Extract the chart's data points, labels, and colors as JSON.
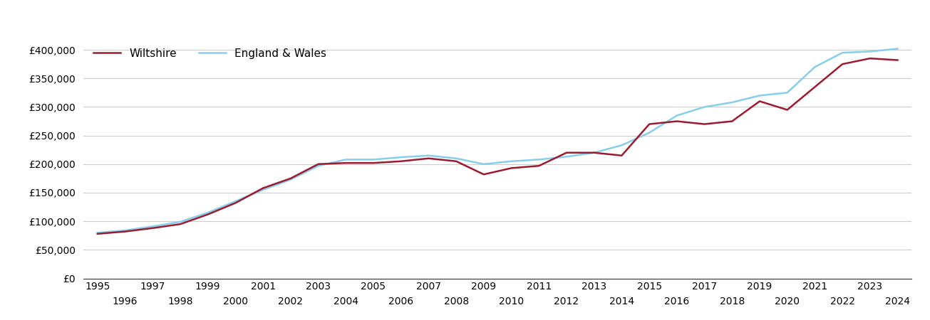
{
  "wiltshire_years": [
    1995,
    1996,
    1997,
    1998,
    1999,
    2000,
    2001,
    2002,
    2003,
    2004,
    2005,
    2006,
    2007,
    2008,
    2009,
    2010,
    2011,
    2012,
    2013,
    2014,
    2015,
    2016,
    2017,
    2018,
    2019,
    2020,
    2021,
    2022,
    2023,
    2024
  ],
  "wiltshire_values": [
    78000,
    82000,
    88000,
    95000,
    112000,
    132000,
    158000,
    175000,
    200000,
    202000,
    202000,
    205000,
    210000,
    205000,
    182000,
    193000,
    197000,
    220000,
    220000,
    215000,
    270000,
    275000,
    270000,
    275000,
    310000,
    295000,
    335000,
    375000,
    385000,
    382000
  ],
  "england_wales_years": [
    1995,
    1996,
    1997,
    1998,
    1999,
    2000,
    2001,
    2002,
    2003,
    2004,
    2005,
    2006,
    2007,
    2008,
    2009,
    2010,
    2011,
    2012,
    2013,
    2014,
    2015,
    2016,
    2017,
    2018,
    2019,
    2020,
    2021,
    2022,
    2023,
    2024
  ],
  "england_wales_values": [
    80000,
    84000,
    91000,
    99000,
    115000,
    135000,
    155000,
    173000,
    197000,
    208000,
    208000,
    212000,
    215000,
    210000,
    200000,
    205000,
    208000,
    213000,
    220000,
    233000,
    255000,
    285000,
    300000,
    308000,
    320000,
    325000,
    370000,
    395000,
    397000,
    402000
  ],
  "wiltshire_color": "#9B1B30",
  "england_wales_color": "#87CEEB",
  "wiltshire_label": "Wiltshire",
  "england_wales_label": "England & Wales",
  "ylim": [
    0,
    420000
  ],
  "yticks": [
    0,
    50000,
    100000,
    150000,
    200000,
    250000,
    300000,
    350000,
    400000
  ],
  "ytick_labels": [
    "£0",
    "£50,000",
    "£100,000",
    "£150,000",
    "£200,000",
    "£250,000",
    "£300,000",
    "£350,000",
    "£400,000"
  ],
  "xlim": [
    1994.5,
    2024.5
  ],
  "line_width": 1.8,
  "background_color": "#ffffff",
  "grid_color": "#cccccc",
  "legend_frameon": false
}
